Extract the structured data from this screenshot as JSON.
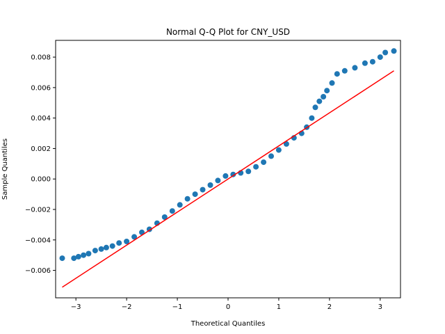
{
  "chart_data": {
    "type": "scatter",
    "title": "Normal Q-Q Plot for CNY_USD",
    "xlabel": "Theoretical Quantiles",
    "ylabel": "Sample Quantiles",
    "xlim": [
      -3.4,
      3.4
    ],
    "ylim": [
      -0.0078,
      0.0091
    ],
    "x_ticks": [
      -3,
      -2,
      -1,
      0,
      1,
      2,
      3
    ],
    "x_tick_labels": [
      "−3",
      "−2",
      "−1",
      "0",
      "1",
      "2",
      "3"
    ],
    "y_ticks": [
      -0.006,
      -0.004,
      -0.002,
      0.0,
      0.002,
      0.004,
      0.006,
      0.008
    ],
    "y_tick_labels": [
      "−0.006",
      "−0.004",
      "−0.002",
      "0.000",
      "0.002",
      "0.004",
      "0.006",
      "0.008"
    ],
    "grid": false,
    "series": [
      {
        "kind": "points",
        "color": "#1f77b4",
        "x": [
          -3.27,
          -3.04,
          -2.95,
          -2.85,
          -2.75,
          -2.62,
          -2.5,
          -2.4,
          -2.28,
          -2.15,
          -2.0,
          -1.85,
          -1.7,
          -1.55,
          -1.4,
          -1.25,
          -1.1,
          -0.95,
          -0.8,
          -0.65,
          -0.5,
          -0.35,
          -0.2,
          -0.05,
          0.1,
          0.25,
          0.4,
          0.55,
          0.7,
          0.85,
          1.0,
          1.15,
          1.3,
          1.45,
          1.55,
          1.65,
          1.72,
          1.8,
          1.88,
          1.95,
          2.05,
          2.15,
          2.3,
          2.5,
          2.7,
          2.85,
          3.0,
          3.1,
          3.27
        ],
        "y": [
          -0.0052,
          -0.0052,
          -0.0051,
          -0.005,
          -0.0049,
          -0.0047,
          -0.0046,
          -0.0045,
          -0.0044,
          -0.0042,
          -0.0041,
          -0.0038,
          -0.0035,
          -0.0033,
          -0.0029,
          -0.0025,
          -0.0021,
          -0.0017,
          -0.0013,
          -0.001,
          -0.0007,
          -0.0004,
          -0.0001,
          0.0002,
          0.0003,
          0.0004,
          0.0005,
          0.0008,
          0.0011,
          0.0015,
          0.0019,
          0.0023,
          0.0027,
          0.003,
          0.0034,
          0.004,
          0.0047,
          0.0051,
          0.0054,
          0.0058,
          0.0063,
          0.0069,
          0.0071,
          0.0073,
          0.0076,
          0.0077,
          0.008,
          0.0083,
          0.0084
        ]
      },
      {
        "kind": "reference-line",
        "color": "#ff0000",
        "x": [
          -3.27,
          3.27
        ],
        "y": [
          -0.0071,
          0.0071
        ]
      }
    ]
  }
}
